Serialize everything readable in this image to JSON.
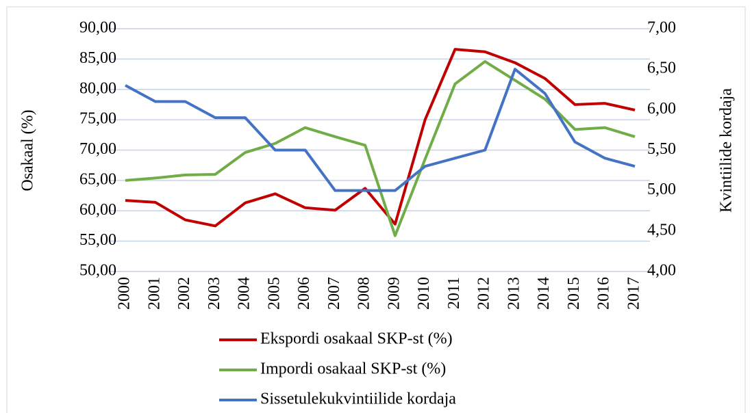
{
  "chart_data": {
    "type": "line",
    "categories": [
      "2000",
      "2001",
      "2002",
      "2003",
      "2004",
      "2005",
      "2006",
      "2007",
      "2008",
      "2009",
      "2010",
      "2011",
      "2012",
      "2013",
      "2014",
      "2015",
      "2016",
      "2017"
    ],
    "series": [
      {
        "name": "Ekspordi osakaal SKP-st (%)",
        "color": "#c00000",
        "values": [
          61.7,
          61.4,
          58.5,
          57.5,
          61.3,
          62.8,
          60.5,
          60.1,
          63.7,
          57.8,
          75.0,
          86.6,
          86.2,
          84.4,
          81.8,
          77.5,
          77.7,
          76.6
        ]
      },
      {
        "name": "Impordi osakaal SKP-st (%)",
        "color": "#70ad47",
        "values": [
          65.0,
          65.4,
          65.9,
          66.0,
          69.6,
          71.1,
          73.7,
          72.2,
          70.8,
          55.9,
          68.5,
          80.9,
          84.6,
          81.5,
          78.4,
          73.4,
          73.7,
          72.2
        ]
      },
      {
        "name": "Sissetulekukvintiilide kordaja",
        "color": "#4472c4",
        "axis": "y2",
        "values": [
          6.3,
          6.1,
          6.1,
          5.9,
          5.9,
          5.5,
          5.5,
          5.0,
          5.0,
          5.0,
          5.3,
          5.4,
          5.5,
          6.5,
          6.2,
          5.6,
          5.4,
          5.3
        ]
      }
    ],
    "ylabel": "Osakaal (%)",
    "y2label": "Kvintiilide kordaja",
    "ylim": [
      50,
      90
    ],
    "yticks": [
      {
        "value": 50,
        "label": "50,00"
      },
      {
        "value": 55,
        "label": "55,00"
      },
      {
        "value": 60,
        "label": "60,00"
      },
      {
        "value": 65,
        "label": "65,00"
      },
      {
        "value": 70,
        "label": "70,00"
      },
      {
        "value": 75,
        "label": "75,00"
      },
      {
        "value": 80,
        "label": "80,00"
      },
      {
        "value": 85,
        "label": "85,00"
      },
      {
        "value": 90,
        "label": "90,00"
      }
    ],
    "y2lim": [
      4,
      7
    ],
    "y2ticks": [
      {
        "value": 4,
        "label": "4,00"
      },
      {
        "value": 4.5,
        "label": "4,50"
      },
      {
        "value": 5,
        "label": "5,00"
      },
      {
        "value": 5.5,
        "label": "5,50"
      },
      {
        "value": 6,
        "label": "6,00"
      },
      {
        "value": 6.5,
        "label": "6,50"
      },
      {
        "value": 7,
        "label": "7,00"
      }
    ],
    "grid": true,
    "legend": "bottom"
  }
}
